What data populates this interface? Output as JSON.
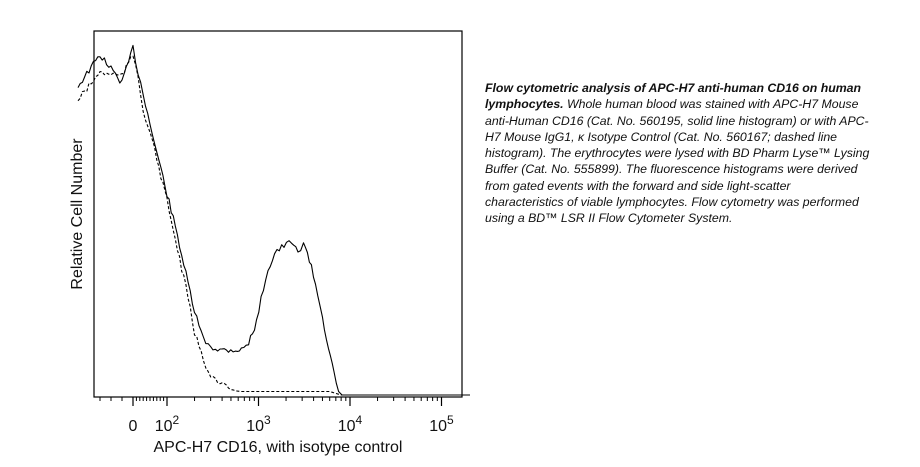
{
  "chart_data": {
    "type": "line",
    "title": "",
    "xlabel": "APC-H7 CD16, with isotype control",
    "ylabel": "Relative Cell Number",
    "x_scale": "biexponential",
    "x_ticks": [
      {
        "value": 0,
        "label": "0"
      },
      {
        "value": 100,
        "label": "10",
        "exp": "2"
      },
      {
        "value": 1000,
        "label": "10",
        "exp": "3"
      },
      {
        "value": 10000,
        "label": "10",
        "exp": "4"
      },
      {
        "value": 100000,
        "label": "10",
        "exp": "5"
      }
    ],
    "y_ticks": [],
    "grid": false,
    "legend": "none",
    "series": [
      {
        "style": "solid",
        "x": [
          -50,
          -30,
          -10,
          0,
          15,
          30,
          50,
          70,
          100,
          130,
          170,
          200,
          250,
          300,
          380,
          470,
          560,
          650,
          780,
          950,
          1200,
          1500,
          1900,
          2300,
          2700,
          3100,
          3600,
          4200,
          5000,
          5800,
          6700,
          7500,
          8200,
          9000,
          10000,
          30000,
          230000
        ],
        "y": [
          0.89,
          0.98,
          0.9,
          1.0,
          0.93,
          0.87,
          0.78,
          0.7,
          0.58,
          0.46,
          0.32,
          0.24,
          0.16,
          0.14,
          0.13,
          0.13,
          0.13,
          0.13,
          0.15,
          0.21,
          0.34,
          0.41,
          0.43,
          0.44,
          0.41,
          0.44,
          0.39,
          0.32,
          0.23,
          0.13,
          0.06,
          0.01,
          0.0,
          0.0,
          0.0,
          0.0,
          0.0
        ]
      },
      {
        "style": "dashed",
        "x": [
          -50,
          -30,
          -10,
          0,
          15,
          30,
          50,
          70,
          100,
          130,
          170,
          200,
          250,
          300,
          380,
          470,
          560,
          650,
          780,
          950,
          1200,
          1500,
          2000,
          3000,
          4500,
          6000,
          8000,
          10000,
          30000,
          230000
        ],
        "y": [
          0.85,
          0.93,
          0.92,
          0.98,
          0.92,
          0.82,
          0.76,
          0.68,
          0.56,
          0.42,
          0.28,
          0.18,
          0.1,
          0.06,
          0.03,
          0.02,
          0.012,
          0.01,
          0.01,
          0.01,
          0.01,
          0.01,
          0.01,
          0.01,
          0.01,
          0.01,
          0.0,
          0.0,
          0.0,
          0.0
        ]
      }
    ]
  },
  "caption": {
    "title": "Flow cytometric analysis of APC-H7 anti-human CD16 on human lymphocytes.",
    "body": " Whole human blood was stained with APC-H7 Mouse anti-Human CD16 (Cat. No. 560195, solid line histogram) or with APC-H7 Mouse IgG1, κ Isotype Control (Cat. No. 560167; dashed line histogram). The erythrocytes were lysed with BD Pharm Lyse™ Lysing Buffer (Cat. No. 555899).  The fluorescence histograms were derived from gated events with the forward and side light-scatter characteristics of viable lymphocytes. Flow cytometry was performed using a BD™ LSR II Flow Cytometer System."
  }
}
